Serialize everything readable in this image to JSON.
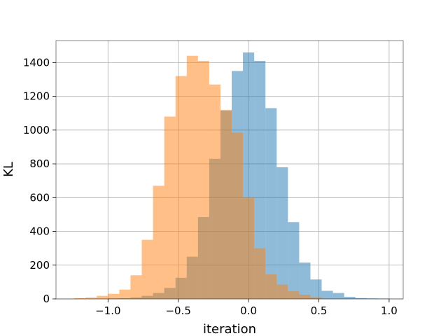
{
  "chart_data": {
    "type": "bar",
    "title": "",
    "xlabel": "iteration",
    "ylabel": "KL",
    "xlim": [
      -1.37,
      1.1
    ],
    "ylim": [
      0,
      1530
    ],
    "grid": true,
    "legend": "none",
    "x_ticks": [
      -1.0,
      -0.5,
      0.0,
      0.5,
      1.0
    ],
    "x_tick_labels": [
      "−1.0",
      "−0.5",
      "0.0",
      "0.5",
      "1.0"
    ],
    "y_ticks": [
      0,
      200,
      400,
      600,
      800,
      1000,
      1200,
      1400
    ],
    "y_tick_labels": [
      "0",
      "200",
      "400",
      "600",
      "800",
      "1000",
      "1200",
      "1400"
    ],
    "series": [
      {
        "color": "#1f77b4",
        "alpha": 0.5,
        "bin_edges": [
          -1.0,
          -0.92,
          -0.84,
          -0.76,
          -0.68,
          -0.6,
          -0.52,
          -0.44,
          -0.36,
          -0.28,
          -0.2,
          -0.12,
          -0.04,
          0.04,
          0.12,
          0.2,
          0.28,
          0.36,
          0.44,
          0.52,
          0.6,
          0.68,
          0.76,
          0.84,
          0.92,
          1.0
        ],
        "counts": [
          3,
          4,
          8,
          18,
          35,
          65,
          125,
          250,
          485,
          830,
          1115,
          1350,
          1460,
          1410,
          1130,
          780,
          455,
          215,
          115,
          48,
          35,
          12,
          5,
          3,
          2
        ]
      },
      {
        "color": "#ff7f0e",
        "alpha": 0.5,
        "bin_edges": [
          -1.24,
          -1.16,
          -1.08,
          -1.0,
          -0.92,
          -0.84,
          -0.76,
          -0.68,
          -0.6,
          -0.52,
          -0.44,
          -0.36,
          -0.28,
          -0.2,
          -0.12,
          -0.04,
          0.04,
          0.12,
          0.2,
          0.28,
          0.36,
          0.44,
          0.52
        ],
        "counts": [
          4,
          8,
          18,
          30,
          55,
          140,
          350,
          670,
          1080,
          1320,
          1440,
          1410,
          1270,
          1120,
          985,
          600,
          300,
          145,
          85,
          45,
          25,
          10
        ]
      }
    ]
  }
}
